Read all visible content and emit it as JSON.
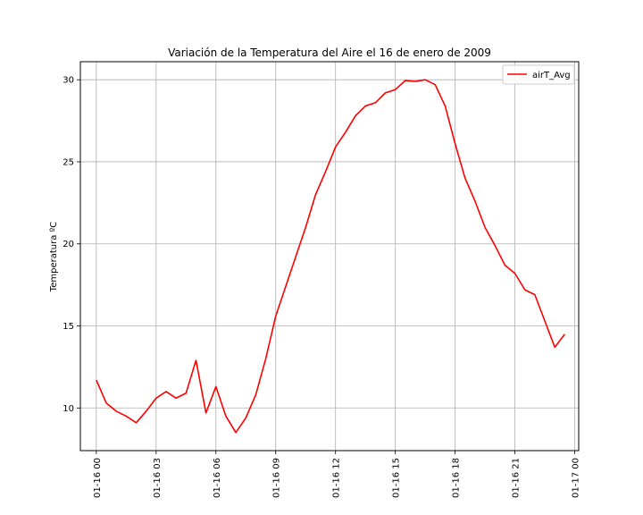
{
  "chart_data": {
    "type": "line",
    "title": "Variación de la Temperatura del Aire el 16 de enero de 2009",
    "xlabel": "",
    "ylabel": "Temperatura ºC",
    "xlim": [
      "01-15 23:12",
      "01-17 00:12"
    ],
    "ylim": [
      7.4,
      31.1
    ],
    "grid": true,
    "legend_position": "top-right",
    "x_ticks": [
      {
        "hour": 0,
        "label": "01-16 00"
      },
      {
        "hour": 3,
        "label": "01-16 03"
      },
      {
        "hour": 6,
        "label": "01-16 06"
      },
      {
        "hour": 9,
        "label": "01-16 09"
      },
      {
        "hour": 12,
        "label": "01-16 12"
      },
      {
        "hour": 15,
        "label": "01-16 15"
      },
      {
        "hour": 18,
        "label": "01-16 18"
      },
      {
        "hour": 21,
        "label": "01-16 21"
      },
      {
        "hour": 24,
        "label": "01-17 00"
      }
    ],
    "y_ticks": [
      10,
      15,
      20,
      25,
      30
    ],
    "series": [
      {
        "name": "airT_Avg",
        "color": "#ff0000",
        "x_hours": [
          0,
          0.5,
          1,
          1.5,
          2,
          2.5,
          3,
          3.5,
          4,
          4.5,
          5,
          5.5,
          6,
          6.5,
          7,
          7.5,
          8,
          8.5,
          9,
          9.5,
          10,
          10.5,
          11,
          11.5,
          12,
          12.5,
          13,
          13.5,
          14,
          14.5,
          15,
          15.5,
          16,
          16.5,
          17,
          17.5,
          18,
          18.5,
          19,
          19.5,
          20,
          20.5,
          21,
          21.5,
          22,
          22.5,
          23,
          23.5
        ],
        "values": [
          11.7,
          10.3,
          9.8,
          9.5,
          9.1,
          9.8,
          10.6,
          11.0,
          10.6,
          10.9,
          12.9,
          9.7,
          11.3,
          9.5,
          8.5,
          9.4,
          10.8,
          13.0,
          15.6,
          17.4,
          19.2,
          21.0,
          23.0,
          24.4,
          25.9,
          26.8,
          27.8,
          28.4,
          28.6,
          29.2,
          29.4,
          29.95,
          29.9,
          30.0,
          29.7,
          28.4,
          26.1,
          24.0,
          22.6,
          21.0,
          19.9,
          18.7,
          18.2,
          17.2,
          16.9,
          15.3,
          13.7,
          14.5
        ]
      }
    ]
  }
}
